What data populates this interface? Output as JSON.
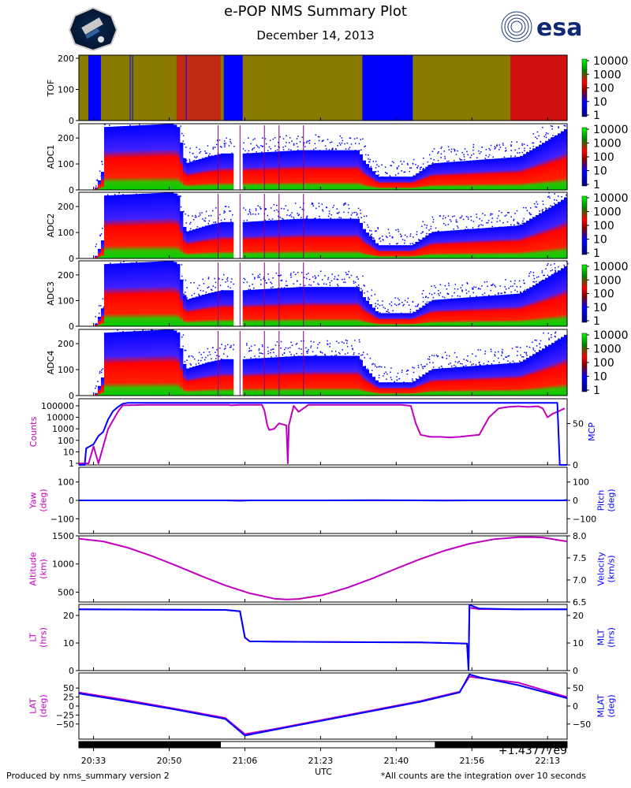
{
  "header": {
    "title": "e-POP NMS Summary Plot",
    "date": "December 14, 2013",
    "right_logo_text": "esa"
  },
  "footer": {
    "left": "Produced by nms_summary version 2",
    "right": "*All counts are the integration over 10 seconds",
    "offset_text": "+1.43777e9",
    "xlabel": "UTC"
  },
  "colors": {
    "magenta": "#c000c0",
    "blue": "#0000ff",
    "green": "#00aa00",
    "red": "#ff0000",
    "olive": "#8a7a00"
  },
  "chart_data": [
    {
      "id": "tof",
      "type": "heatmap",
      "ylabel": "TOF",
      "ylim": [
        0,
        210
      ],
      "yticks": [
        0,
        100,
        200
      ],
      "colorbar": {
        "ticks": [
          "10000",
          "1000",
          "100",
          "10",
          "1"
        ],
        "scale": "log"
      }
    },
    {
      "id": "adc1",
      "type": "heatmap",
      "ylabel": "ADC1",
      "ylim": [
        0,
        255
      ],
      "yticks": [
        0,
        100,
        200
      ],
      "colorbar": {
        "ticks": [
          "10000",
          "1000",
          "100",
          "10",
          "1"
        ],
        "scale": "log"
      }
    },
    {
      "id": "adc2",
      "type": "heatmap",
      "ylabel": "ADC2",
      "ylim": [
        0,
        255
      ],
      "yticks": [
        0,
        100,
        200
      ],
      "colorbar": {
        "ticks": [
          "10000",
          "1000",
          "100",
          "10",
          "1"
        ],
        "scale": "log"
      }
    },
    {
      "id": "adc3",
      "type": "heatmap",
      "ylabel": "ADC3",
      "ylim": [
        0,
        255
      ],
      "yticks": [
        0,
        100,
        200
      ],
      "colorbar": {
        "ticks": [
          "10000",
          "1000",
          "100",
          "10",
          "1"
        ],
        "scale": "log"
      }
    },
    {
      "id": "adc4",
      "type": "heatmap",
      "ylabel": "ADC4",
      "ylim": [
        0,
        255
      ],
      "yticks": [
        0,
        100,
        200
      ],
      "colorbar": {
        "ticks": [
          "10000",
          "1000",
          "100",
          "10",
          "1"
        ],
        "scale": "log"
      }
    },
    {
      "id": "counts",
      "type": "line",
      "left": {
        "label": "Counts",
        "ticks": [
          "100000",
          "10000",
          "1000",
          "100",
          "10",
          "1"
        ],
        "scale": "log",
        "ylim": [
          1,
          300000
        ]
      },
      "right": {
        "label": "MCP",
        "ticks": [
          "50",
          "0"
        ],
        "ylim": [
          0,
          80
        ]
      },
      "series": [
        {
          "name": "Counts",
          "color": "magenta",
          "x": [
            0,
            2,
            3,
            4,
            6,
            8,
            9,
            14,
            17,
            19,
            21,
            25,
            30,
            30.8,
            31,
            33,
            35,
            37.5,
            38,
            38.6,
            39,
            40,
            41,
            42.5,
            42.8,
            43,
            44,
            45,
            47,
            50,
            55,
            60,
            66,
            68,
            69,
            70,
            72,
            74,
            76,
            78,
            80,
            82,
            84,
            86,
            88,
            90,
            92,
            94,
            95,
            96,
            97,
            98,
            99.5
          ],
          "y": [
            1,
            1,
            30,
            1,
            1000,
            30000,
            110000,
            120000,
            120000,
            120000,
            120000,
            120000,
            120000,
            120000,
            110000,
            120000,
            120000,
            120000,
            40000,
            2000,
            800,
            1000,
            3000,
            2000,
            1,
            2000,
            100000,
            30000,
            120000,
            120000,
            120000,
            120000,
            120000,
            100000,
            3000,
            300,
            200,
            200,
            180,
            200,
            250,
            300,
            10000,
            60000,
            80000,
            90000,
            80000,
            90000,
            60000,
            10000,
            20000,
            30000,
            60000
          ]
        },
        {
          "name": "MCP",
          "color": "blue",
          "x": [
            0,
            1.2,
            1.5,
            3,
            4,
            5,
            6,
            7,
            8,
            9,
            10,
            20,
            40,
            60,
            80,
            90,
            98,
            98.5,
            99,
            100
          ],
          "y": [
            0,
            0,
            20,
            25,
            35,
            40,
            55,
            65,
            70,
            74,
            75,
            75,
            75,
            75,
            75,
            75,
            75,
            0,
            0,
            0
          ]
        }
      ]
    },
    {
      "id": "attitude",
      "type": "line",
      "left": {
        "label": "Yaw\n(deg)",
        "ticks": [
          "100",
          "0",
          "−100"
        ],
        "ylim": [
          -180,
          180
        ]
      },
      "right": {
        "label": "Pitch\n(deg)",
        "ticks": [
          "100",
          "0",
          "−100"
        ],
        "ylim": [
          -180,
          180
        ]
      },
      "series": [
        {
          "name": "Yaw",
          "color": "magenta",
          "x": [
            0,
            100
          ],
          "y": [
            0,
            0
          ]
        },
        {
          "name": "Pitch",
          "color": "blue",
          "x": [
            0,
            10,
            20,
            30,
            33,
            35,
            40,
            50,
            60,
            70,
            75,
            80,
            90,
            99,
            100
          ],
          "y": [
            0,
            0,
            0,
            0,
            -2,
            0,
            0,
            0,
            1,
            0,
            -1,
            0,
            0,
            0,
            2
          ]
        }
      ]
    },
    {
      "id": "orbit",
      "type": "line",
      "left": {
        "label": "Altitude\n(km)",
        "ticks": [
          "1500",
          "1000",
          "500"
        ],
        "ylim": [
          325,
          1500
        ]
      },
      "right": {
        "label": "Velocity\n(km/s)",
        "ticks": [
          "8.0",
          "7.5",
          "7.0",
          "6.5"
        ],
        "ylim": [
          6.5,
          8.0
        ]
      },
      "series": [
        {
          "name": "Altitude",
          "color": "magenta",
          "x": [
            0,
            5,
            10,
            15,
            20,
            25,
            30,
            35,
            40,
            42.5,
            45,
            50,
            55,
            60,
            65,
            70,
            75,
            80,
            85,
            90,
            92.5,
            95,
            100
          ],
          "y": [
            1450,
            1400,
            1290,
            1140,
            970,
            790,
            620,
            480,
            385,
            370,
            380,
            450,
            580,
            740,
            920,
            1090,
            1240,
            1360,
            1440,
            1475,
            1478,
            1470,
            1400
          ]
        }
      ]
    },
    {
      "id": "time",
      "type": "line",
      "left": {
        "label": "LT\n(hrs)",
        "ticks": [
          "20",
          "10",
          "0"
        ],
        "ylim": [
          0,
          24
        ]
      },
      "right": {
        "label": "MLT\n(hrs)",
        "ticks": [
          "20",
          "10",
          "0"
        ],
        "ylim": [
          0,
          24
        ]
      },
      "series": [
        {
          "name": "LT",
          "color": "magenta",
          "x": [
            0,
            30,
            33,
            34,
            35,
            40,
            60,
            70,
            75,
            79.5,
            79.8,
            80,
            82,
            90,
            100
          ],
          "y": [
            22.2,
            22.0,
            21.5,
            12,
            10.6,
            10.5,
            10.3,
            10.2,
            10.0,
            9.8,
            2,
            22.8,
            22.3,
            22.2,
            22.2
          ]
        },
        {
          "name": "MLT",
          "color": "blue",
          "x": [
            0,
            30,
            33,
            34,
            35,
            40,
            60,
            70,
            75,
            79.5,
            79.8,
            80,
            82,
            90,
            100
          ],
          "y": [
            22.2,
            22.0,
            21.5,
            12,
            10.6,
            10.5,
            10.3,
            10.2,
            10.0,
            9.8,
            0.2,
            23.8,
            22.5,
            22.2,
            22.2
          ]
        }
      ]
    },
    {
      "id": "position",
      "type": "line",
      "left": {
        "label": "LAT\n(deg)",
        "ticks": [
          "50",
          "25",
          "0",
          "−25",
          "−50"
        ],
        "ylim": [
          -92,
          92
        ]
      },
      "right": {
        "label": "MLAT\n(deg)",
        "ticks": [
          "50",
          "0",
          "−50"
        ],
        "ylim": [
          -92,
          92
        ]
      },
      "series": [
        {
          "name": "LAT",
          "color": "magenta",
          "x": [
            0,
            10,
            20,
            30,
            34,
            40,
            50,
            60,
            70,
            78,
            80,
            82,
            90,
            100
          ],
          "y": [
            38,
            16,
            -8,
            -33,
            -78,
            -64,
            -38,
            -12,
            14,
            40,
            82,
            78,
            65,
            25
          ]
        },
        {
          "name": "MLAT",
          "color": "blue",
          "x": [
            0,
            10,
            20,
            30,
            34,
            40,
            50,
            60,
            70,
            78,
            80,
            82,
            90,
            100
          ],
          "y": [
            35,
            13,
            -10,
            -36,
            -82,
            -66,
            -40,
            -14,
            12,
            38,
            88,
            80,
            58,
            22
          ]
        }
      ]
    },
    {
      "id": "x_axis",
      "type": "axis",
      "ticks": [
        "20:33",
        "20:50",
        "21:06",
        "21:23",
        "21:40",
        "21:56",
        "22:13"
      ],
      "tick_positions": [
        3,
        18.5,
        34,
        49.5,
        65,
        80.5,
        96
      ],
      "daynight_bar": [
        {
          "state": "night",
          "from": 0,
          "to": 29
        },
        {
          "state": "day",
          "from": 29,
          "to": 73
        },
        {
          "state": "night",
          "from": 73,
          "to": 100
        }
      ]
    }
  ]
}
